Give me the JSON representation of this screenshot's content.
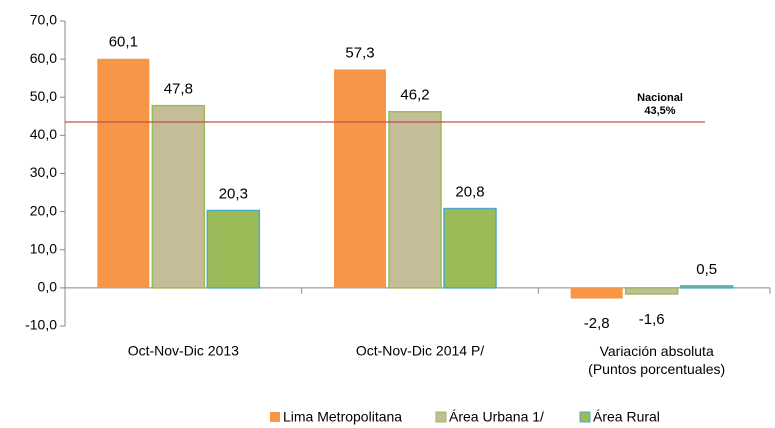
{
  "chart_data": {
    "type": "bar",
    "categories": [
      "Oct-Nov-Dic 2013",
      "Oct-Nov-Dic 2014 P/",
      "Variación absoluta\n(Puntos porcentuales)"
    ],
    "series": [
      {
        "name": "Lima Metropolitana",
        "color": "#f79646",
        "values": [
          60.1,
          57.3,
          -2.8
        ],
        "value_labels": [
          "60,1",
          "57,3",
          "-2,8"
        ]
      },
      {
        "name": "Área Urbana 1/",
        "color": "#c4bd97",
        "values": [
          47.8,
          46.2,
          -1.6
        ],
        "value_labels": [
          "47,8",
          "46,2",
          "-1,6"
        ]
      },
      {
        "name": "Área Rural",
        "color": "#9bbb59",
        "values": [
          20.3,
          20.8,
          0.5
        ],
        "value_labels": [
          "20,3",
          "20,8",
          "0,5"
        ]
      }
    ],
    "ylim": [
      -10,
      70
    ],
    "yticks": [
      {
        "value": -10,
        "label": "-10,0"
      },
      {
        "value": 0,
        "label": "0,0"
      },
      {
        "value": 10,
        "label": "10,0"
      },
      {
        "value": 20,
        "label": "20,0"
      },
      {
        "value": 30,
        "label": "30,0"
      },
      {
        "value": 40,
        "label": "40,0"
      },
      {
        "value": 50,
        "label": "50,0"
      },
      {
        "value": 60,
        "label": "60,0"
      },
      {
        "value": 70,
        "label": "70,0"
      }
    ],
    "reference_line": {
      "text": "Nacional",
      "value": 43.5,
      "value_label": "43,5%",
      "color": "#c0504d"
    },
    "legend": "bottom"
  }
}
